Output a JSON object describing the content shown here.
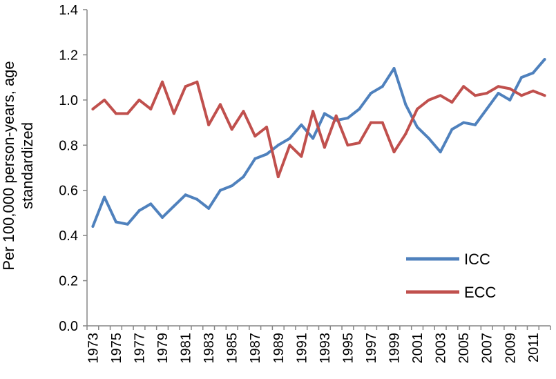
{
  "chart_data": {
    "type": "line",
    "title": "",
    "xlabel": "",
    "ylabel": "Per 100,000 person-years, age standardized",
    "ylabel_lines": [
      "Per 100,000 person-years, age",
      "standardized"
    ],
    "ylim": [
      0,
      1.4
    ],
    "yticks": [
      "0.0",
      "0.2",
      "0.4",
      "0.6",
      "0.8",
      "1.0",
      "1.2",
      "1.4"
    ],
    "ytick_values": [
      0,
      0.2,
      0.4,
      0.6,
      0.8,
      1.0,
      1.2,
      1.4
    ],
    "x": [
      1973,
      1974,
      1975,
      1976,
      1977,
      1978,
      1979,
      1980,
      1981,
      1982,
      1983,
      1984,
      1985,
      1986,
      1987,
      1988,
      1989,
      1990,
      1991,
      1992,
      1993,
      1994,
      1995,
      1996,
      1997,
      1998,
      1999,
      2000,
      2001,
      2002,
      2003,
      2004,
      2005,
      2006,
      2007,
      2008,
      2009,
      2010,
      2011,
      2012
    ],
    "xtick_labels": [
      "1973",
      "1975",
      "1977",
      "1979",
      "1981",
      "1983",
      "1985",
      "1987",
      "1989",
      "1991",
      "1993",
      "1995",
      "1997",
      "1999",
      "2001",
      "2003",
      "2005",
      "2007",
      "2009",
      "2011"
    ],
    "xtick_values": [
      1973,
      1975,
      1977,
      1979,
      1981,
      1983,
      1985,
      1987,
      1989,
      1991,
      1993,
      1995,
      1997,
      1999,
      2001,
      2003,
      2005,
      2007,
      2009,
      2011
    ],
    "grid": false,
    "legend_position": "bottom-right",
    "series": [
      {
        "name": "ICC",
        "color": "#4F81BD",
        "values": [
          0.44,
          0.57,
          0.46,
          0.45,
          0.51,
          0.54,
          0.48,
          0.53,
          0.58,
          0.56,
          0.52,
          0.6,
          0.62,
          0.66,
          0.74,
          0.76,
          0.8,
          0.83,
          0.89,
          0.83,
          0.94,
          0.91,
          0.92,
          0.96,
          1.03,
          1.06,
          1.14,
          0.98,
          0.88,
          0.83,
          0.77,
          0.87,
          0.9,
          0.89,
          0.96,
          1.03,
          1.0,
          1.1,
          1.12,
          1.18
        ]
      },
      {
        "name": "ECC",
        "color": "#C0504D",
        "values": [
          0.96,
          1.0,
          0.94,
          0.94,
          1.0,
          0.96,
          1.08,
          0.94,
          1.06,
          1.08,
          0.89,
          0.98,
          0.87,
          0.95,
          0.84,
          0.88,
          0.66,
          0.8,
          0.75,
          0.95,
          0.79,
          0.93,
          0.8,
          0.81,
          0.9,
          0.9,
          0.77,
          0.85,
          0.96,
          1.0,
          1.02,
          0.99,
          1.06,
          1.02,
          1.03,
          1.06,
          1.05,
          1.02,
          1.04,
          1.02
        ]
      }
    ]
  }
}
